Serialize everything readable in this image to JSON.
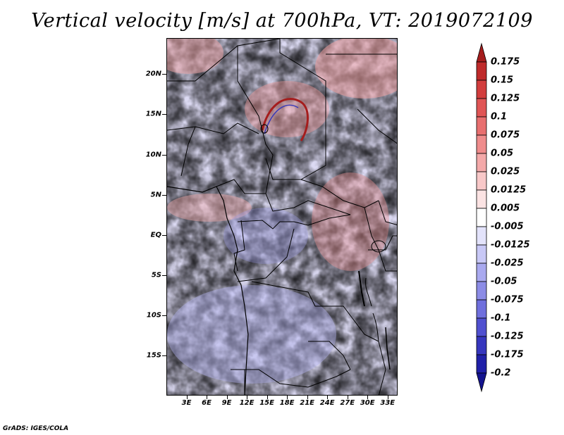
{
  "title": "Vertical velocity [m/s] at 700hPa, VT: 2019072109",
  "credit": "GrADS: IGES/COLA",
  "map": {
    "lat_ticks": [
      "20N",
      "15N",
      "10N",
      "5N",
      "EQ",
      "5S",
      "10S",
      "15S"
    ],
    "lon_ticks": [
      "3E",
      "6E",
      "9E",
      "12E",
      "15E",
      "18E",
      "21E",
      "24E",
      "27E",
      "30E",
      "33E"
    ],
    "lat_range": [
      -20,
      24.5
    ],
    "lon_range": [
      0,
      34.5
    ],
    "lat_tick_values": [
      20,
      15,
      10,
      5,
      0,
      -5,
      -10,
      -15
    ],
    "lon_tick_values": [
      3,
      6,
      9,
      12,
      15,
      18,
      21,
      24,
      27,
      30,
      33
    ]
  },
  "colorbar": {
    "labels": [
      "0.175",
      "0.15",
      "0.125",
      "0.1",
      "0.075",
      "0.05",
      "0.025",
      "0.0125",
      "0.005",
      "-0.005",
      "-0.0125",
      "-0.025",
      "-0.05",
      "-0.075",
      "-0.1",
      "-0.125",
      "-0.175",
      "-0.2"
    ],
    "colors": [
      "#a51d1d",
      "#bf2a2a",
      "#d23d3d",
      "#e05555",
      "#e86f6f",
      "#ef8c8c",
      "#f4a9a9",
      "#f8c8c8",
      "#fbe3e3",
      "#ffffff",
      "#e3e3fb",
      "#c8c8f6",
      "#a9a9ef",
      "#8c8ce6",
      "#6f6fdd",
      "#5050d0",
      "#3636be",
      "#2020a8",
      "#14148e"
    ]
  },
  "colors": {
    "positive_max": "#a51d1d",
    "negative_max": "#14148e",
    "border": "#000000"
  }
}
